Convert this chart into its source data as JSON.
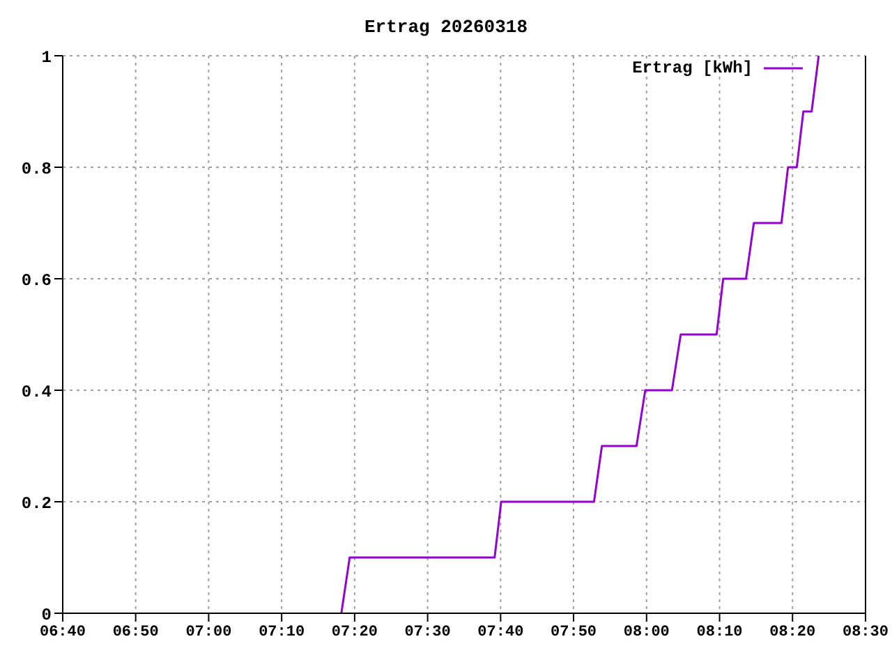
{
  "chart_data": {
    "type": "line",
    "title": "Ertrag 20260318",
    "x": [
      7.303,
      7.322,
      7.653,
      7.668,
      7.88,
      7.898,
      7.977,
      7.997,
      8.058,
      8.078,
      8.16,
      8.175,
      8.227,
      8.245,
      8.308,
      8.323,
      8.343,
      8.358,
      8.377,
      8.393
    ],
    "series": [
      {
        "name": "Ertrag [kWh]",
        "color": "#9400d3",
        "values": [
          0,
          0.1,
          0.1,
          0.2,
          0.2,
          0.3,
          0.3,
          0.4,
          0.4,
          0.5,
          0.5,
          0.6,
          0.6,
          0.7,
          0.7,
          0.8,
          0.8,
          0.9,
          0.9,
          1
        ]
      }
    ],
    "xlim": [
      6.6667,
      8.5
    ],
    "xticks": [
      {
        "value": 6.6667,
        "label": "06:40"
      },
      {
        "value": 6.8333,
        "label": "06:50"
      },
      {
        "value": 7,
        "label": "07:00"
      },
      {
        "value": 7.1667,
        "label": "07:10"
      },
      {
        "value": 7.3333,
        "label": "07:20"
      },
      {
        "value": 7.5,
        "label": "07:30"
      },
      {
        "value": 7.6667,
        "label": "07:40"
      },
      {
        "value": 7.8333,
        "label": "07:50"
      },
      {
        "value": 8,
        "label": "08:00"
      },
      {
        "value": 8.1667,
        "label": "08:10"
      },
      {
        "value": 8.3333,
        "label": "08:20"
      },
      {
        "value": 8.5,
        "label": "08:30"
      }
    ],
    "ylim": [
      0,
      1
    ],
    "yticks": [
      0,
      0.2,
      0.4,
      0.6,
      0.8,
      1
    ],
    "grid": true,
    "legend": "top right",
    "marker": "none",
    "line_style": "solid"
  }
}
